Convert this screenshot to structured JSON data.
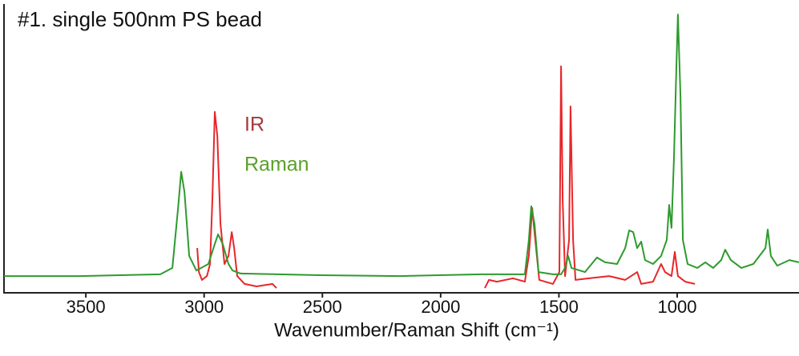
{
  "chart_data": {
    "type": "line",
    "title": "#1. single 500nm PS bead",
    "x_label": "Wavenumber/Raman Shift (cm⁻¹)",
    "xlim": [
      3846,
      485
    ],
    "ylim": [
      0,
      100
    ],
    "xticks": [
      3500,
      3000,
      2500,
      2000,
      1500,
      1000
    ],
    "series": [
      {
        "name": "IR",
        "color": "#e8262a",
        "legend_color": "#a33a3a",
        "x": [
          3029,
          3022,
          3009,
          2988,
          2975,
          2965,
          2955,
          2944,
          2931,
          2914,
          2897,
          2883,
          2873,
          2860,
          2829,
          2778,
          2711,
          2694,
          2250,
          1813,
          1796,
          1762,
          1694,
          1644,
          1627,
          1613,
          1600,
          1583,
          1525,
          1498,
          1491,
          1484,
          1474,
          1457,
          1451,
          1440,
          1430,
          1373,
          1288,
          1220,
          1169,
          1152,
          1102,
          1068,
          1051,
          1024,
          1010,
          997,
          966,
          925
        ],
        "values": [
          15.7,
          7.1,
          4.3,
          5.7,
          10,
          32.9,
          64.3,
          55.7,
          24.3,
          10,
          12.9,
          21.4,
          15.7,
          5.7,
          2.9,
          2,
          2.9,
          1.4,
          null,
          1.4,
          4.3,
          3.7,
          4.9,
          3.7,
          12.9,
          30,
          18.6,
          4.3,
          2.9,
          7.1,
          80.6,
          32.9,
          5.7,
          18.6,
          66.3,
          18.6,
          4.3,
          4.9,
          5.7,
          4.3,
          7.1,
          2.9,
          3.7,
          10,
          7.1,
          5.7,
          14.3,
          5.7,
          3.7,
          2.9
        ]
      },
      {
        "name": "Raman",
        "color": "#2e9a2e",
        "legend_color": "#5aa02c",
        "x": [
          3846,
          3524,
          3185,
          3134,
          3110,
          3097,
          3083,
          3063,
          3033,
          2982,
          2955,
          2941,
          2921,
          2897,
          2880,
          2846,
          2507,
          2169,
          1830,
          1644,
          1627,
          1617,
          1603,
          1586,
          1525,
          1491,
          1474,
          1461,
          1447,
          1390,
          1339,
          1305,
          1254,
          1220,
          1203,
          1186,
          1169,
          1152,
          1136,
          1102,
          1068,
          1044,
          1034,
          1024,
          1014,
          1003,
          997,
          986,
          976,
          956,
          915,
          881,
          848,
          814,
          797,
          773,
          729,
          678,
          627,
          617,
          604,
          577,
          526,
          485
        ],
        "values": [
          5.7,
          5.7,
          6.3,
          8.6,
          30,
          42.9,
          35.7,
          12.9,
          7.7,
          10,
          17.1,
          20.6,
          17.1,
          10,
          7.7,
          6.6,
          6,
          5.7,
          6.3,
          6.3,
          18.6,
          30.6,
          24.3,
          7.1,
          6.3,
          6.3,
          8.6,
          12.9,
          8.6,
          7.1,
          12.3,
          10.6,
          10,
          15.7,
          22,
          21.4,
          15.7,
          18,
          11.4,
          10,
          12.9,
          18.6,
          31.1,
          22.9,
          47.1,
          81.4,
          99.1,
          70,
          18.6,
          10,
          8.6,
          10.6,
          8.6,
          11.4,
          15.1,
          11.4,
          8.6,
          10,
          15.7,
          22.3,
          12.9,
          9.4,
          11.4,
          10.6
        ]
      }
    ]
  }
}
